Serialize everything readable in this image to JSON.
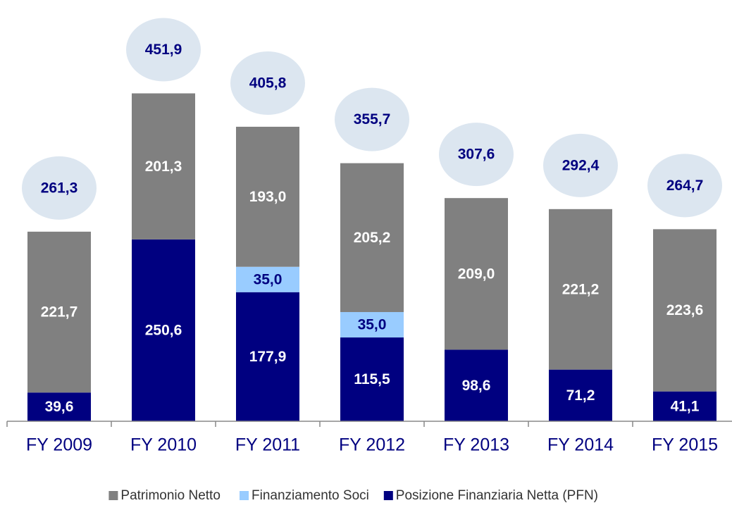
{
  "chart_data": {
    "type": "stacked_bar",
    "categories": [
      "FY 2009",
      "FY 2010",
      "FY 2011",
      "FY 2012",
      "FY 2013",
      "FY 2014",
      "FY 2015"
    ],
    "series": [
      {
        "name": "Posizione Finanziaria Netta (PFN)",
        "color": "#000080",
        "values": [
          39.6,
          250.6,
          177.9,
          115.5,
          98.6,
          71.2,
          41.1
        ],
        "value_labels": [
          "39,6",
          "250,6",
          "177,9",
          "115,5",
          "98,6",
          "71,2",
          "41,1"
        ]
      },
      {
        "name": "Finanziamento Soci",
        "color": "#99ccff",
        "values": [
          null,
          null,
          35.0,
          35.0,
          null,
          null,
          null
        ],
        "value_labels": [
          null,
          null,
          "35,0",
          "35,0",
          null,
          null,
          null
        ]
      },
      {
        "name": "Patrimonio Netto",
        "color": "#808080",
        "values": [
          221.7,
          201.3,
          193.0,
          205.2,
          209.0,
          221.2,
          223.6
        ],
        "value_labels": [
          "221,7",
          "201,3",
          "193,0",
          "205,2",
          "209,0",
          "221,2",
          "223,6"
        ]
      }
    ],
    "totals": [
      261.3,
      451.9,
      405.8,
      355.7,
      307.6,
      292.4,
      264.7
    ],
    "total_labels": [
      "261,3",
      "451,9",
      "405,8",
      "355,7",
      "307,6",
      "292,4",
      "264,7"
    ],
    "ylim": [
      0,
      560
    ],
    "legend_order": [
      2,
      1,
      0
    ]
  }
}
